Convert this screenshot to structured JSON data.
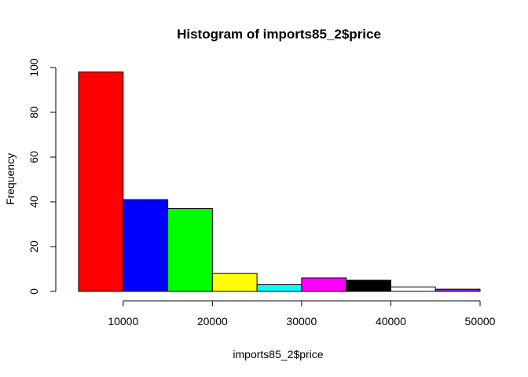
{
  "chart_data": {
    "type": "bar",
    "title": "Histogram of imports85_2$price",
    "xlabel": "imports85_2$price",
    "ylabel": "Frequency",
    "bins": [
      {
        "start": 5000,
        "end": 10000,
        "value": 98,
        "color": "#ff0000"
      },
      {
        "start": 10000,
        "end": 15000,
        "value": 41,
        "color": "#0000ff"
      },
      {
        "start": 15000,
        "end": 20000,
        "value": 37,
        "color": "#00ff00"
      },
      {
        "start": 20000,
        "end": 25000,
        "value": 8,
        "color": "#ffff00"
      },
      {
        "start": 25000,
        "end": 30000,
        "value": 3,
        "color": "#00ffff"
      },
      {
        "start": 30000,
        "end": 35000,
        "value": 6,
        "color": "#ff00ff"
      },
      {
        "start": 35000,
        "end": 40000,
        "value": 5,
        "color": "#000000"
      },
      {
        "start": 40000,
        "end": 45000,
        "value": 2,
        "color": "#ffffff"
      },
      {
        "start": 45000,
        "end": 50000,
        "value": 1,
        "color": "#a020f0"
      }
    ],
    "xticks": [
      "10000",
      "20000",
      "30000",
      "40000",
      "50000"
    ],
    "xtick_values": [
      10000,
      20000,
      30000,
      40000,
      50000
    ],
    "yticks": [
      "0",
      "20",
      "40",
      "60",
      "80",
      "100"
    ],
    "ytick_values": [
      0,
      20,
      40,
      60,
      80,
      100
    ],
    "xlim": [
      5000,
      50000
    ],
    "ylim": [
      0,
      100
    ],
    "grid": false,
    "legend": "none"
  }
}
